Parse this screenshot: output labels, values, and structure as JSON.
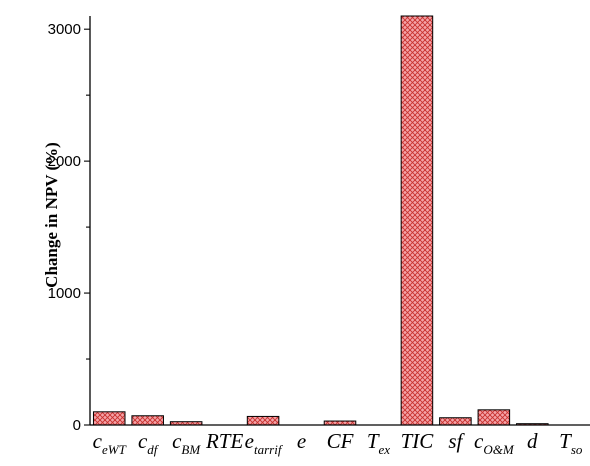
{
  "chart_data": {
    "type": "bar",
    "ylabel": "Change in NPV (%)",
    "xlabel": "",
    "ylim": [
      0,
      3100
    ],
    "yticks": [
      0,
      1000,
      2000,
      3000
    ],
    "grid": false,
    "legend": "none",
    "categories": [
      {
        "base": "c",
        "sub": "eWT"
      },
      {
        "base": "c",
        "sub": "df"
      },
      {
        "base": "c",
        "sub": "BM"
      },
      {
        "base": "RTE",
        "sub": ""
      },
      {
        "base": "e",
        "sub": "tarrif"
      },
      {
        "base": "e",
        "sub": ""
      },
      {
        "base": "CF",
        "sub": ""
      },
      {
        "base": "T",
        "sub": "ex"
      },
      {
        "base": "TIC",
        "sub": ""
      },
      {
        "base": "sf",
        "sub": ""
      },
      {
        "base": "c",
        "sub": "O&M"
      },
      {
        "base": "d",
        "sub": ""
      },
      {
        "base": "T",
        "sub": "so"
      }
    ],
    "values": [
      100,
      70,
      25,
      0,
      65,
      0,
      30,
      0,
      3100,
      55,
      115,
      10,
      0
    ],
    "bar_color": "#f4a3a8",
    "bar_hatch_color": "#c8322e"
  }
}
